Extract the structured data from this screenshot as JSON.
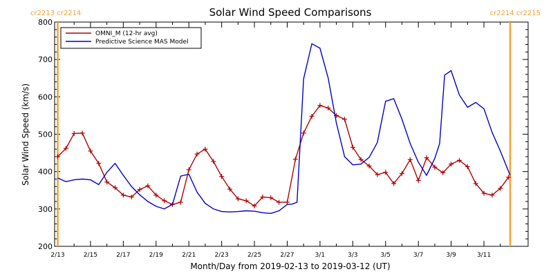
{
  "chart_data": {
    "type": "line",
    "title": "Solar Wind Speed Comparisons",
    "xlabel": "Month/Day from 2019-02-13 to 2019-03-12 (UT)",
    "ylabel": "Solar Wind Speed (km/s)",
    "xlim": [
      0,
      28
    ],
    "ylim": [
      200,
      800
    ],
    "y_ticks": [
      200,
      300,
      400,
      500,
      600,
      700,
      800
    ],
    "x_ticks": [
      {
        "day": 0,
        "label": "2/13"
      },
      {
        "day": 2,
        "label": "2/15"
      },
      {
        "day": 4,
        "label": "2/17"
      },
      {
        "day": 6,
        "label": "2/19"
      },
      {
        "day": 8,
        "label": "2/21"
      },
      {
        "day": 10,
        "label": "2/23"
      },
      {
        "day": 12,
        "label": "2/25"
      },
      {
        "day": 14,
        "label": "2/27"
      },
      {
        "day": 16,
        "label": "3/1"
      },
      {
        "day": 18,
        "label": "3/3"
      },
      {
        "day": 20,
        "label": "3/5"
      },
      {
        "day": 22,
        "label": "3/7"
      },
      {
        "day": 24,
        "label": "3/9"
      },
      {
        "day": 26,
        "label": "3/11"
      }
    ],
    "rotation_labels": [
      {
        "text": "cr2213 cr2214",
        "position": "top-left"
      },
      {
        "text": "cr2214 cr2215",
        "position": "top-right"
      }
    ],
    "rotation_markers": [
      0,
      27.6
    ],
    "legend_position": "top-left",
    "series": [
      {
        "name": "OMNI_M (12-hr avg)",
        "color": "#b00000",
        "markers": "plus",
        "x": [
          0,
          0.5,
          1,
          1.5,
          2,
          2.5,
          3,
          3.5,
          4,
          4.5,
          5,
          5.5,
          6,
          6.5,
          7,
          7.5,
          8,
          8.5,
          9,
          9.5,
          10,
          10.5,
          11,
          11.5,
          12,
          12.5,
          13,
          13.5,
          14,
          14.5,
          15,
          15.5,
          16,
          16.5,
          17,
          17.5,
          18,
          18.5,
          19,
          19.5,
          20,
          20.5,
          21,
          21.5,
          22,
          22.5,
          23,
          23.5,
          24,
          24.5,
          25,
          25.5,
          26,
          26.5,
          27,
          27.5
        ],
        "y": [
          440,
          462,
          502,
          503,
          455,
          422,
          372,
          357,
          337,
          332,
          352,
          362,
          337,
          322,
          312,
          318,
          405,
          447,
          460,
          427,
          387,
          353,
          327,
          322,
          308,
          332,
          330,
          318,
          318,
          433,
          503,
          548,
          577,
          570,
          550,
          540,
          465,
          432,
          415,
          392,
          398,
          368,
          395,
          432,
          376,
          437,
          412,
          397,
          420,
          430,
          413,
          368,
          342,
          337,
          355,
          385
        ]
      },
      {
        "name": "Predictive Science MAS Model",
        "color": "#0000c8",
        "markers": "none",
        "x": [
          0,
          0.5,
          1,
          1.5,
          2,
          2.5,
          3,
          3.5,
          4,
          4.5,
          5,
          5.5,
          6,
          6.5,
          7,
          7.5,
          8,
          8.5,
          9,
          9.5,
          10,
          10.5,
          11,
          11.5,
          12,
          12.5,
          13,
          13.5,
          14,
          14.3,
          14.6,
          15,
          15.5,
          16,
          16.5,
          17,
          17.5,
          18,
          18.5,
          19,
          19.5,
          20,
          20.5,
          21,
          21.5,
          22,
          22.5,
          23,
          23.3,
          23.6,
          24,
          24.5,
          25,
          25.5,
          26,
          26.5,
          27,
          27.6
        ],
        "y": [
          383,
          373,
          378,
          380,
          378,
          365,
          398,
          422,
          390,
          360,
          338,
          320,
          307,
          300,
          312,
          388,
          393,
          345,
          315,
          300,
          293,
          292,
          293,
          295,
          294,
          290,
          288,
          295,
          312,
          313,
          318,
          648,
          742,
          730,
          650,
          530,
          440,
          418,
          420,
          438,
          478,
          588,
          595,
          540,
          475,
          425,
          390,
          435,
          475,
          658,
          670,
          605,
          572,
          585,
          568,
          505,
          455,
          390
        ]
      }
    ]
  }
}
